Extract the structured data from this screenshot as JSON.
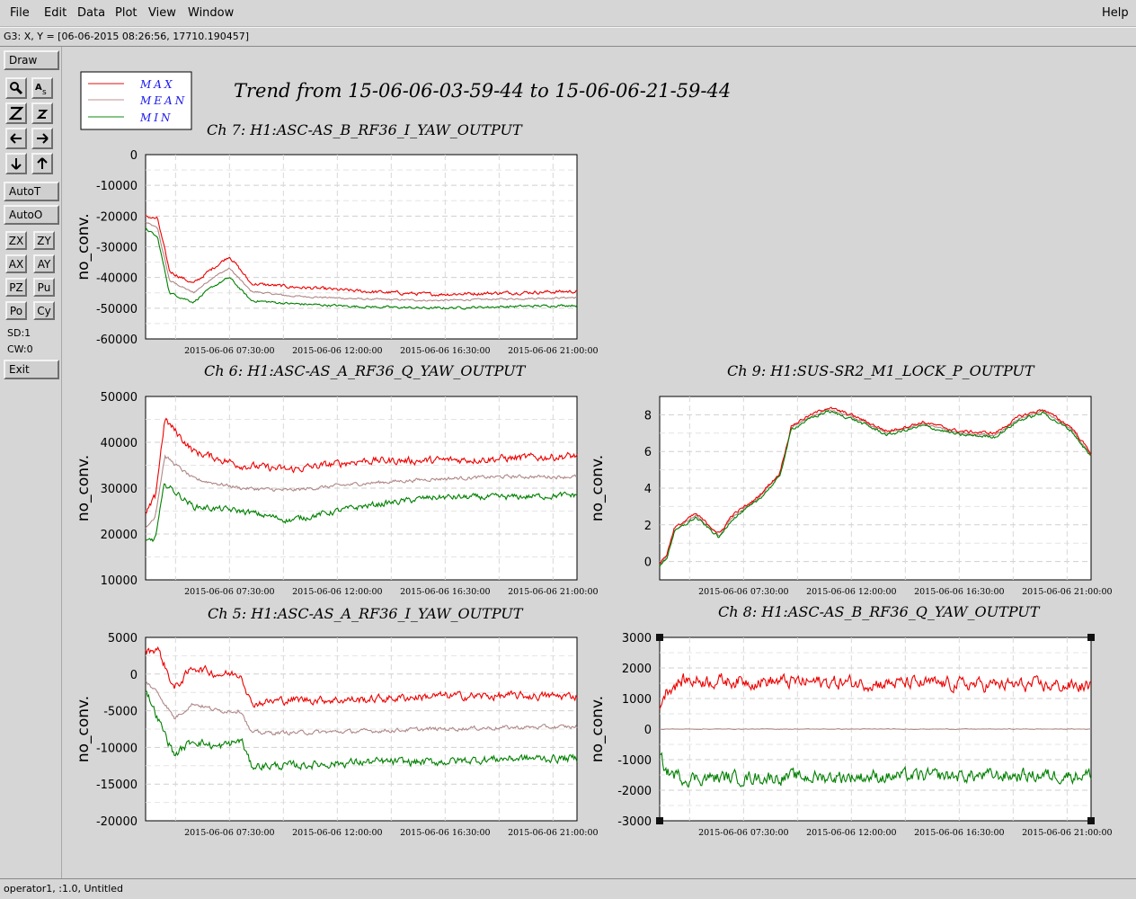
{
  "menubar": {
    "file": "File",
    "edit": "Edit",
    "data": "Data",
    "plot": "Plot",
    "view": "View",
    "window": "Window",
    "help": "Help"
  },
  "coord_readout": "G3: X, Y = [06-06-2015 08:26:56, 17710.190457]",
  "toolbar": {
    "draw": "Draw",
    "auto_t": "AutoT",
    "auto_o": "AutoO",
    "zx": "ZX",
    "zy": "ZY",
    "ax": "AX",
    "ay": "AY",
    "pz": "PZ",
    "pu": "Pu",
    "po": "Po",
    "cy": "Cy",
    "sd": "SD:1",
    "cw": "CW:0",
    "exit": "Exit"
  },
  "status_text": "operator1, :1.0, Untitled",
  "main_title": "Trend from 15-06-06-03-59-44 to 15-06-06-21-59-44",
  "legend": [
    {
      "label": "MAX",
      "color": "#e01010"
    },
    {
      "label": "MEAN",
      "color": "#c09090"
    },
    {
      "label": "MIN",
      "color": "#108a10"
    }
  ],
  "colors": {
    "max": "#ee0000",
    "mean": "#b08888",
    "min": "#008000",
    "legend_text": "#1a1aee"
  },
  "chart_data": [
    {
      "type": "line",
      "title": "Ch 7: H1:ASC-AS_B_RF36_I_YAW_OUTPUT",
      "ylabel": "no_conv.",
      "ylim": [
        -60000,
        0
      ],
      "yticks": [
        0,
        -10000,
        -20000,
        -30000,
        -40000,
        -50000,
        -60000
      ],
      "xticks": [
        "2015-06-06 07:30:00",
        "2015-06-06 12:00:00",
        "2015-06-06 16:30:00",
        "2015-06-06 21:00:00"
      ],
      "grid": true,
      "noise": [
        1000,
        500,
        700
      ],
      "series": [
        {
          "name": "MAX",
          "x": [
            0,
            0.5,
            1,
            2,
            2.8,
            3.5,
            4.4,
            6,
            9,
            12,
            15,
            18
          ],
          "y": [
            -20000,
            -21000,
            -38000,
            -42000,
            -37000,
            -33000,
            -42000,
            -43000,
            -44500,
            -45500,
            -45000,
            -44500
          ]
        },
        {
          "name": "MEAN",
          "x": [
            0,
            0.5,
            1,
            2,
            2.8,
            3.5,
            4.4,
            6,
            9,
            12,
            15,
            18
          ],
          "y": [
            -22000,
            -24000,
            -41000,
            -45000,
            -40000,
            -37000,
            -44500,
            -46000,
            -47000,
            -47500,
            -47000,
            -46500
          ]
        },
        {
          "name": "MIN",
          "x": [
            0,
            0.5,
            1,
            2,
            2.8,
            3.5,
            4.4,
            6,
            9,
            12,
            15,
            18
          ],
          "y": [
            -24000,
            -27000,
            -45000,
            -48000,
            -43000,
            -40000,
            -47500,
            -48500,
            -49500,
            -50000,
            -49500,
            -49000
          ]
        }
      ]
    },
    {
      "type": "line",
      "title": "Ch 6: H1:ASC-AS_A_RF36_Q_YAW_OUTPUT",
      "ylabel": "no_conv.",
      "ylim": [
        10000,
        50000
      ],
      "yticks": [
        50000,
        40000,
        30000,
        20000,
        10000
      ],
      "xticks": [
        "2015-06-06 07:30:00",
        "2015-06-06 12:00:00",
        "2015-06-06 16:30:00",
        "2015-06-06 21:00:00"
      ],
      "grid": true,
      "noise": [
        1500,
        700,
        1200
      ],
      "series": [
        {
          "name": "MAX",
          "x": [
            0,
            0.4,
            0.8,
            2,
            4,
            6,
            9,
            12,
            15,
            18
          ],
          "y": [
            24000,
            28000,
            45000,
            38000,
            35000,
            34000,
            36000,
            36000,
            36500,
            37000
          ]
        },
        {
          "name": "MEAN",
          "x": [
            0,
            0.4,
            0.8,
            2,
            4,
            6,
            9,
            12,
            15,
            18
          ],
          "y": [
            21000,
            24000,
            37000,
            32000,
            30000,
            29500,
            31000,
            32000,
            32500,
            32500
          ]
        },
        {
          "name": "MIN",
          "x": [
            0,
            0.4,
            0.8,
            2,
            4,
            6,
            9,
            12,
            15,
            18
          ],
          "y": [
            18000,
            19000,
            31000,
            26000,
            25000,
            23000,
            26000,
            28000,
            28000,
            28500
          ]
        }
      ]
    },
    {
      "type": "line",
      "title": "Ch 9: H1:SUS-SR2_M1_LOCK_P_OUTPUT",
      "ylabel": "no_conv.",
      "ylim": [
        -1,
        9
      ],
      "yticks": [
        8,
        6,
        4,
        2,
        0
      ],
      "xticks": [
        "2015-06-06 07:30:00",
        "2015-06-06 12:00:00",
        "2015-06-06 16:30:00",
        "2015-06-06 21:00:00"
      ],
      "grid": true,
      "noise": [
        0.15,
        0.1,
        0.15
      ],
      "series": [
        {
          "name": "MAX",
          "x": [
            0,
            0.3,
            0.6,
            1.5,
            2.5,
            3,
            4,
            5,
            5.5,
            6,
            7,
            8,
            9.5,
            11,
            12.5,
            14,
            15,
            16,
            17.2,
            18
          ],
          "y": [
            -0.1,
            0.4,
            1.8,
            2.6,
            1.5,
            2.5,
            3.4,
            4.8,
            7.4,
            7.8,
            8.4,
            8.0,
            7.1,
            7.6,
            7.1,
            7.0,
            7.9,
            8.3,
            7.3,
            5.9
          ]
        },
        {
          "name": "MEAN",
          "x": [
            0,
            0.3,
            0.6,
            1.5,
            2.5,
            3,
            4,
            5,
            5.5,
            6,
            7,
            8,
            9.5,
            11,
            12.5,
            14,
            15,
            16,
            17.2,
            18
          ],
          "y": [
            -0.2,
            0.3,
            1.7,
            2.5,
            1.4,
            2.4,
            3.3,
            4.7,
            7.3,
            7.7,
            8.3,
            7.9,
            7.0,
            7.5,
            7.0,
            6.9,
            7.8,
            8.2,
            7.2,
            5.8
          ]
        },
        {
          "name": "MIN",
          "x": [
            0,
            0.3,
            0.6,
            1.5,
            2.5,
            3,
            4,
            5,
            5.5,
            6,
            7,
            8,
            9.5,
            11,
            12.5,
            14,
            15,
            16,
            17.2,
            18
          ],
          "y": [
            -0.3,
            0.2,
            1.6,
            2.4,
            1.3,
            2.3,
            3.2,
            4.6,
            7.2,
            7.6,
            8.2,
            7.8,
            6.9,
            7.4,
            6.9,
            6.8,
            7.7,
            8.1,
            7.1,
            5.7
          ]
        }
      ]
    },
    {
      "type": "line",
      "title": "Ch 5: H1:ASC-AS_A_RF36_I_YAW_OUTPUT",
      "ylabel": "no_conv.",
      "ylim": [
        -20000,
        5000
      ],
      "yticks": [
        5000,
        0,
        -5000,
        -10000,
        -15000,
        -20000
      ],
      "xticks": [
        "2015-06-06 07:30:00",
        "2015-06-06 12:00:00",
        "2015-06-06 16:30:00",
        "2015-06-06 21:00:00"
      ],
      "grid": true,
      "noise": [
        1000,
        500,
        1000
      ],
      "series": [
        {
          "name": "MAX",
          "x": [
            0,
            0.5,
            1.2,
            2,
            3,
            4,
            4.4,
            6,
            9,
            12,
            15,
            18
          ],
          "y": [
            3000,
            3500,
            -2000,
            1000,
            0,
            0,
            -4000,
            -3500,
            -3500,
            -3000,
            -3000,
            -3000
          ]
        },
        {
          "name": "MEAN",
          "x": [
            0,
            0.5,
            1.2,
            2,
            3,
            4,
            4.4,
            6,
            9,
            12,
            15,
            18
          ],
          "y": [
            -1000,
            -2500,
            -6000,
            -4000,
            -5000,
            -5000,
            -8000,
            -8000,
            -7800,
            -7500,
            -7300,
            -7200
          ]
        },
        {
          "name": "MIN",
          "x": [
            0,
            0.5,
            1.2,
            2,
            3,
            4,
            4.4,
            6,
            9,
            12,
            15,
            18
          ],
          "y": [
            -2000,
            -6000,
            -11000,
            -9000,
            -10000,
            -9000,
            -12500,
            -12500,
            -12000,
            -12000,
            -11500,
            -11500
          ]
        }
      ]
    },
    {
      "type": "line",
      "title": "Ch 8: H1:ASC-AS_B_RF36_Q_YAW_OUTPUT",
      "ylabel": "no_conv.",
      "ylim": [
        -3000,
        3000
      ],
      "yticks": [
        3000,
        2000,
        1000,
        0,
        -1000,
        -2000,
        -3000
      ],
      "xticks": [
        "2015-06-06 07:30:00",
        "2015-06-06 12:00:00",
        "2015-06-06 16:30:00",
        "2015-06-06 21:00:00"
      ],
      "grid": true,
      "selected": true,
      "noise": [
        400,
        20,
        400
      ],
      "series": [
        {
          "name": "MAX",
          "x": [
            0,
            0.3,
            1,
            18
          ],
          "y": [
            800,
            1300,
            1600,
            1400
          ]
        },
        {
          "name": "MEAN",
          "x": [
            0,
            0.3,
            1,
            18
          ],
          "y": [
            0,
            0,
            0,
            0
          ]
        },
        {
          "name": "MIN",
          "x": [
            0,
            0.3,
            1,
            18
          ],
          "y": [
            -900,
            -1400,
            -1600,
            -1500
          ]
        }
      ]
    }
  ]
}
